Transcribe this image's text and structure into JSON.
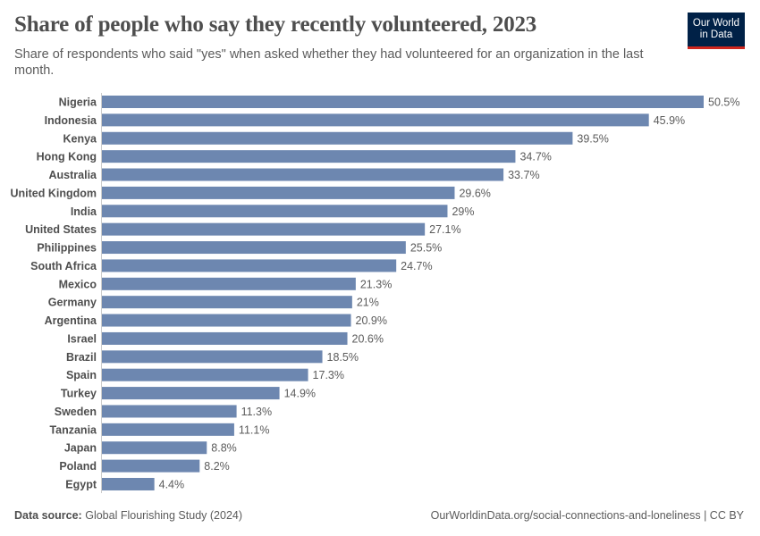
{
  "header": {
    "title": "Share of people who say they recently volunteered, 2023",
    "subtitle": "Share of respondents who said \"yes\" when asked whether they had volunteered for an organization in the last month.",
    "logo_text": "Our World in Data"
  },
  "chart_data": {
    "type": "bar",
    "orientation": "horizontal",
    "categories": [
      "Nigeria",
      "Indonesia",
      "Kenya",
      "Hong Kong",
      "Australia",
      "United Kingdom",
      "India",
      "United States",
      "Philippines",
      "South Africa",
      "Mexico",
      "Germany",
      "Argentina",
      "Israel",
      "Brazil",
      "Spain",
      "Turkey",
      "Sweden",
      "Tanzania",
      "Japan",
      "Poland",
      "Egypt"
    ],
    "values": [
      50.5,
      45.9,
      39.5,
      34.7,
      33.7,
      29.6,
      29,
      27.1,
      25.5,
      24.7,
      21.3,
      21,
      20.9,
      20.6,
      18.5,
      17.3,
      14.9,
      11.3,
      11.1,
      8.8,
      8.2,
      4.4
    ],
    "value_labels": [
      "50.5%",
      "45.9%",
      "39.5%",
      "34.7%",
      "33.7%",
      "29.6%",
      "29%",
      "27.1%",
      "25.5%",
      "24.7%",
      "21.3%",
      "21%",
      "20.9%",
      "20.6%",
      "18.5%",
      "17.3%",
      "14.9%",
      "11.3%",
      "11.1%",
      "8.8%",
      "8.2%",
      "4.4%"
    ],
    "unit": "%",
    "bar_color": "#6d87b0",
    "grid": false
  },
  "footer": {
    "source_label": "Data source:",
    "source": "Global Flourishing Study (2024)",
    "url": "OurWorldinData.org/social-connections-and-loneliness | CC BY"
  }
}
